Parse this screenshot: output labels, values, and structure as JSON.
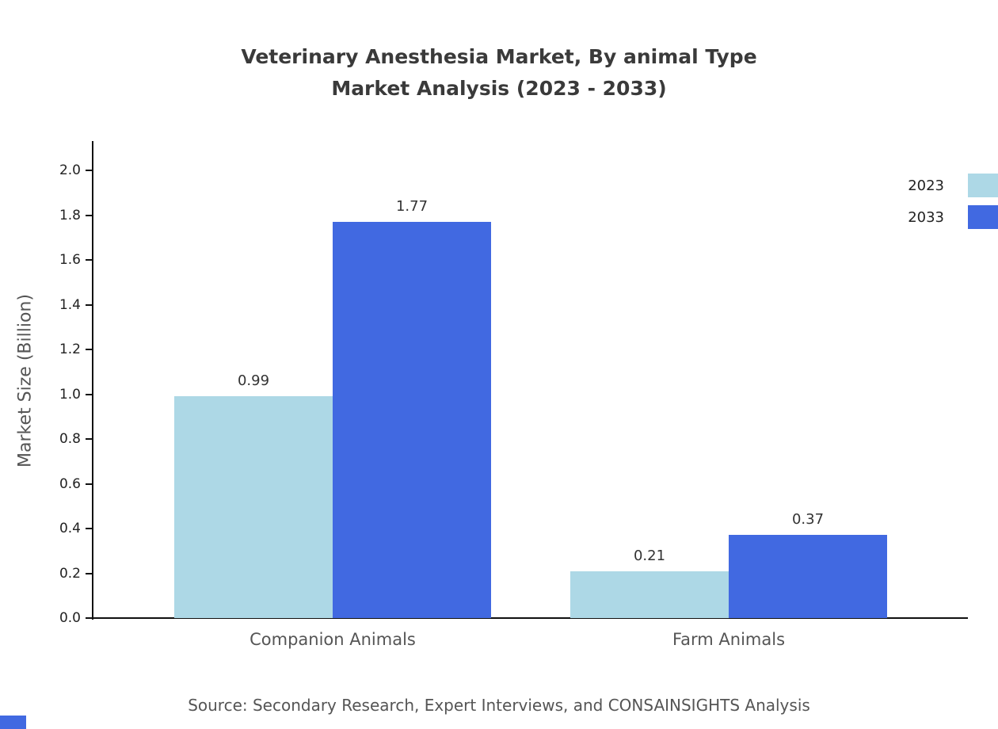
{
  "title": {
    "line1": "Veterinary Anesthesia Market, By animal Type",
    "line2": "Market Analysis (2023 - 2033)"
  },
  "source": "Source: Secondary Research, Expert Interviews, and CONSAINSIGHTS Analysis",
  "colors": {
    "series_2023": "#add8e6",
    "series_2033": "#4169e1",
    "axis": "#111111",
    "watermark": "#4169e1"
  },
  "chart_data": {
    "type": "bar",
    "title": "Veterinary Anesthesia Market, By animal Type Market Analysis (2023 - 2033)",
    "categories": [
      "Companion Animals",
      "Farm Animals"
    ],
    "series": [
      {
        "name": "2023",
        "color": "#add8e6",
        "values": [
          0.99,
          0.21
        ]
      },
      {
        "name": "2033",
        "color": "#4169e1",
        "values": [
          1.77,
          0.37
        ]
      }
    ],
    "value_labels": [
      [
        "0.99",
        "0.21"
      ],
      [
        "1.77",
        "0.37"
      ]
    ],
    "xlabel": "",
    "ylabel": "Market Size (Billion)",
    "ylim": [
      0.0,
      2.0
    ],
    "yticks": [
      "0.0",
      "0.2",
      "0.4",
      "0.6",
      "0.8",
      "1.0",
      "1.2",
      "1.4",
      "1.6",
      "1.8",
      "2.0"
    ],
    "grid": false,
    "legend_position": "top-right"
  }
}
